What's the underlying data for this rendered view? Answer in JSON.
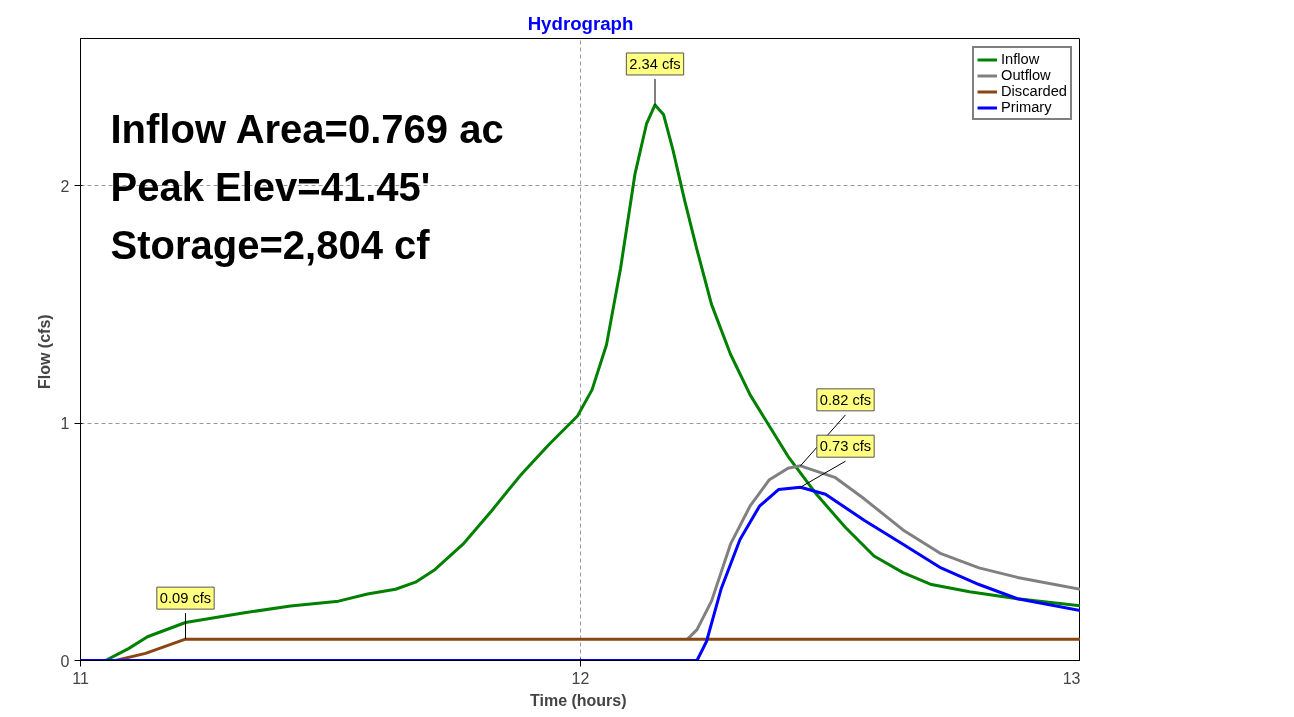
{
  "chart_data": {
    "type": "line",
    "title": "Hydrograph",
    "xlabel": "Time  (hours)",
    "ylabel": "Flow  (cfs)",
    "xlim": [
      11,
      13
    ],
    "xticks": [
      11,
      12,
      13
    ],
    "ylim": [
      0,
      2.62
    ],
    "yticks": [
      0,
      1,
      2
    ],
    "grid": true,
    "legend": "top right",
    "line_style": "solid",
    "marker": "none",
    "series": [
      {
        "name": "Inflow",
        "color": "#008000",
        "x": [
          11.0,
          11.05,
          11.096,
          11.134,
          11.21,
          11.325,
          11.42,
          11.516,
          11.574,
          11.63,
          11.67,
          11.707,
          11.765,
          11.822,
          11.88,
          11.937,
          11.994,
          12.023,
          12.052,
          12.08,
          12.109,
          12.132,
          12.149,
          12.166,
          12.185,
          12.208,
          12.233,
          12.262,
          12.3,
          12.339,
          12.377,
          12.415,
          12.472,
          12.53,
          12.587,
          12.645,
          12.702,
          12.778,
          12.874,
          13.0
        ],
        "values": [
          0,
          0,
          0.05,
          0.1,
          0.16,
          0.2,
          0.23,
          0.25,
          0.28,
          0.3,
          0.33,
          0.38,
          0.49,
          0.63,
          0.78,
          0.91,
          1.03,
          1.14,
          1.33,
          1.65,
          2.05,
          2.26,
          2.34,
          2.3,
          2.15,
          1.94,
          1.73,
          1.5,
          1.29,
          1.12,
          0.99,
          0.86,
          0.7,
          0.56,
          0.44,
          0.37,
          0.32,
          0.29,
          0.26,
          0.23
        ]
      },
      {
        "name": "Outflow",
        "color": "#808080",
        "x": [
          12.214,
          12.233,
          12.262,
          12.3,
          12.339,
          12.377,
          12.415,
          12.44,
          12.51,
          12.568,
          12.645,
          12.721,
          12.797,
          12.874,
          13.0
        ],
        "values": [
          0.09,
          0.13,
          0.25,
          0.49,
          0.65,
          0.76,
          0.81,
          0.82,
          0.77,
          0.68,
          0.55,
          0.45,
          0.39,
          0.35,
          0.3
        ]
      },
      {
        "name": "Discarded",
        "color": "#8b4513",
        "x": [
          11.0,
          11.07,
          11.13,
          11.21,
          13.0
        ],
        "values": [
          0,
          0,
          0.03,
          0.09,
          0.09
        ]
      },
      {
        "name": "Primary",
        "color": "#0000ff",
        "x": [
          11.0,
          12.233,
          12.252,
          12.281,
          12.319,
          12.358,
          12.396,
          12.44,
          12.49,
          12.568,
          12.645,
          12.721,
          12.797,
          12.874,
          13.0
        ],
        "values": [
          0,
          0,
          0.08,
          0.3,
          0.51,
          0.65,
          0.72,
          0.73,
          0.7,
          0.59,
          0.49,
          0.39,
          0.32,
          0.26,
          0.21
        ]
      }
    ],
    "annotations": [
      {
        "text": "2.34 cfs",
        "x": 12.149,
        "y": 2.34
      },
      {
        "text": "0.73 cfs",
        "x": 12.44,
        "y": 0.73
      },
      {
        "text": "0.82 cfs",
        "x": 12.44,
        "y": 0.82
      },
      {
        "text": "0.09 cfs",
        "x": 11.21,
        "y": 0.09
      },
      "Inflow Area=0.769 ac",
      "Peak Elev=41.45'",
      "Storage=2,804 cf"
    ]
  }
}
